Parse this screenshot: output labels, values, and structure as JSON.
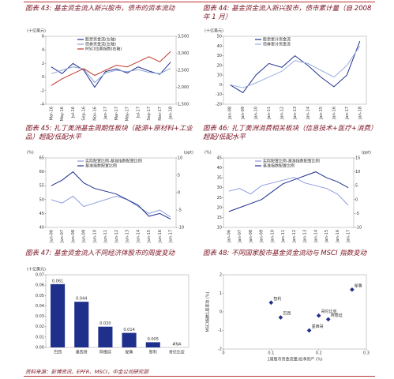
{
  "chart_data": [
    {
      "type": "line",
      "title": "图表 43: 基金资金流入新兴股市，债市的资本流动",
      "ylabel": "(十亿美元)",
      "categories": [
        "Mar-16",
        "May-16",
        "Jul-16",
        "Sep-16",
        "Nov-16",
        "Jan-17",
        "Mar-17",
        "May-17",
        "Jul-17",
        "Sep-17",
        "Nov-17",
        "Jan-18"
      ],
      "series": [
        {
          "name": "股票资金流(左轴)",
          "color": "#1f2f8c",
          "values": [
            1.5,
            0.5,
            2.0,
            1.0,
            -1.5,
            0.8,
            1.2,
            0.6,
            1.5,
            0.9,
            0.4,
            2.2
          ]
        },
        {
          "name": "债券资金流(左轴)",
          "color": "#8fa3d6",
          "values": [
            0.5,
            1.0,
            1.5,
            1.2,
            -0.8,
            0.6,
            1.0,
            0.8,
            1.1,
            0.7,
            0.5,
            1.3
          ]
        },
        {
          "name": "MSCI拉美指数(右轴)",
          "color": "#c0392b",
          "axis": "y2",
          "values": [
            2050,
            2250,
            2400,
            2550,
            2350,
            2500,
            2650,
            2600,
            2750,
            2900,
            2750,
            3050
          ]
        }
      ],
      "ylim": [
        -4,
        6
      ],
      "yticks": [
        -4,
        -2,
        0,
        2,
        4,
        6
      ],
      "y2lim": [
        1500,
        3500
      ],
      "y2ticks": [
        {
          "value": 1500,
          "label": "1,500"
        },
        {
          "value": 2000,
          "label": "2,000"
        },
        {
          "value": 2500,
          "label": "2,500"
        },
        {
          "value": 3000,
          "label": "3,000"
        },
        {
          "value": 3500,
          "label": "3,500"
        }
      ]
    },
    {
      "type": "line",
      "title": "图表 44: 基金资金流入新兴股市，债市累计量（自 2008 年 1 月）",
      "ylabel": "(十亿美元)",
      "categories": [
        "Jan-08",
        "Jan-09",
        "Jan-10",
        "Jan-11",
        "Jan-12",
        "Jan-13",
        "Jan-14",
        "Jan-15",
        "Jan-16",
        "Jan-17",
        "Jan-18"
      ],
      "series": [
        {
          "name": "股票累计资金流",
          "color": "#1f2f8c",
          "values": [
            0,
            -8,
            10,
            22,
            18,
            30,
            20,
            8,
            -2,
            10,
            45
          ]
        },
        {
          "name": "债券累计资金流",
          "color": "#9db0e0",
          "values": [
            0,
            -3,
            2,
            8,
            14,
            25,
            22,
            15,
            8,
            20,
            40
          ]
        }
      ],
      "ylim": [
        -20,
        50
      ],
      "yticks": [
        -20,
        -10,
        0,
        10,
        20,
        30,
        40,
        50
      ]
    },
    {
      "type": "line",
      "title": "图表 45: 扎丁美洲基金周期性板块（能源+原材料+工业品）超配/低配水平",
      "ylabel": "(%)",
      "y2label": "(ppt)",
      "categories": [
        "Jun-06",
        "Jun-07",
        "Jun-08",
        "Jun-09",
        "Jun-10",
        "Jun-11",
        "Jun-12",
        "Jun-13",
        "Jun-14",
        "Jun-15",
        "Jun-16",
        "Jun-17"
      ],
      "series": [
        {
          "name": "实际配置比例-基准指数配置比例",
          "color": "#8c9be0",
          "axis": "y2",
          "values": [
            -2,
            -3,
            -1,
            -4,
            -3,
            -2,
            -1,
            -2,
            -4,
            -6,
            -5,
            -7
          ]
        },
        {
          "name": "基准指数配置比例",
          "color": "#1f2f8c",
          "values": [
            55,
            57,
            60,
            56,
            54,
            53,
            52,
            50,
            48,
            44,
            45,
            43
          ]
        }
      ],
      "ylim": [
        40,
        65
      ],
      "yticks": [
        40,
        45,
        50,
        55,
        60,
        65
      ],
      "y2lim": [
        -10,
        10
      ],
      "y2ticks": [
        -10,
        -5,
        0,
        5,
        10
      ]
    },
    {
      "type": "line",
      "title": "图表 46: 扎丁美洲消费相关板块（信息技术+医疗+消费）超配/低配水平",
      "ylabel": "(%)",
      "y2label": "(ppt)",
      "categories": [
        "Jan-06",
        "Jan-07",
        "Jan-08",
        "Jan-09",
        "Jan-10",
        "Jan-11",
        "Jan-12",
        "Jan-13",
        "Jan-14",
        "Jan-15",
        "Jan-16",
        "Jan-17"
      ],
      "series": [
        {
          "name": "实际配置比例-基准指数配置比例",
          "color": "#8c9be0",
          "axis": "y2",
          "values": [
            3,
            4,
            2,
            5,
            6,
            7,
            8,
            6,
            5,
            4,
            2,
            -2
          ]
        },
        {
          "name": "基准指数配置比例",
          "color": "#1f2f8c",
          "values": [
            18,
            20,
            22,
            24,
            28,
            32,
            34,
            36,
            38,
            35,
            33,
            30
          ]
        }
      ],
      "ylim": [
        10,
        45
      ],
      "yticks": [
        10,
        15,
        20,
        25,
        30,
        35,
        40,
        45
      ],
      "y2lim": [
        -10,
        15
      ],
      "y2ticks": [
        -10,
        -5,
        0,
        5,
        10,
        15
      ]
    },
    {
      "type": "bar",
      "title": "图表 47: 基金资金流入不同经济体股市的周度变动",
      "ylabel": "(十亿美元)",
      "color": "#1f2f8c",
      "categories": [
        "巴西",
        "墨西哥",
        "阿根廷",
        "秘鲁",
        "智利",
        "哥伦比亚"
      ],
      "values": [
        0.061,
        0.044,
        0.02,
        0.014,
        0.005,
        null
      ],
      "value_labels": [
        "0.061",
        "0.044",
        "0.020",
        "0.014",
        "0.005",
        "#NA"
      ],
      "ylim": [
        0,
        0.07
      ],
      "yticks": [
        {
          "value": 0,
          "label": "0.00"
        },
        0.01,
        0.02,
        0.03,
        0.04,
        0.05,
        0.06,
        0.07
      ]
    },
    {
      "type": "scatter",
      "title": "图表 48: 不同国家股市基金资金流动与 MSCI 指数变动",
      "xlabel": "1周股市资金流量/总净资产 (%)",
      "ylabel": "MSCI指数1周变动 (%)",
      "color": "#1f2f8c",
      "labels": [
        "智利",
        "巴西",
        "墨西哥",
        "哥伦比亚",
        "阿根廷",
        "秘鲁"
      ],
      "x": [
        0.1,
        0.12,
        0.18,
        0.2,
        0.22,
        0.27
      ],
      "values": [
        0.5,
        -0.3,
        -1.0,
        -0.2,
        -0.4,
        1.2
      ],
      "xlim": [
        0,
        0.3
      ],
      "xticks": [
        0,
        0.1,
        0.2,
        0.3
      ],
      "ylim": [
        -2,
        2
      ],
      "yticks": [
        -2,
        -1,
        0,
        1,
        2
      ]
    }
  ],
  "source": "资料来源：彭博资讯、EPFR、MSCI，中金公司研究部"
}
